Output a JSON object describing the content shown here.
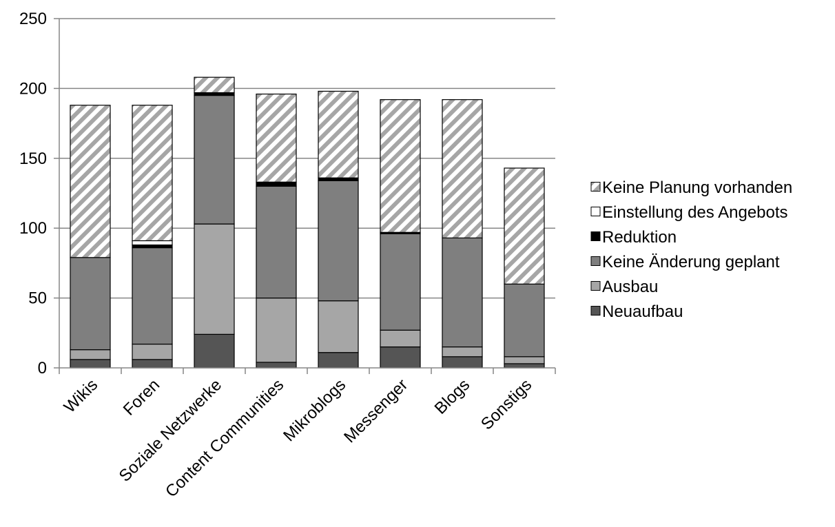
{
  "chart_data": {
    "type": "bar",
    "stacked": true,
    "title": "",
    "xlabel": "",
    "ylabel": "",
    "ylim": [
      0,
      250
    ],
    "yticks": [
      0,
      50,
      100,
      150,
      200,
      250
    ],
    "grid": true,
    "legend_position": "right",
    "categories": [
      "Wikis",
      "Foren",
      "Soziale Netzwerke",
      "Content Communities",
      "Mikroblogs",
      "Messenger",
      "Blogs",
      "Sonstigs"
    ],
    "series": [
      {
        "name": "Neuaufbau",
        "color": "#555555",
        "pattern": "solid",
        "values": [
          6,
          6,
          24,
          4,
          11,
          15,
          8,
          3
        ]
      },
      {
        "name": "Ausbau",
        "color": "#a6a6a6",
        "pattern": "solid",
        "values": [
          7,
          11,
          79,
          46,
          37,
          12,
          7,
          5
        ]
      },
      {
        "name": "Keine Änderung geplant",
        "color": "#7f7f7f",
        "pattern": "solid",
        "values": [
          66,
          69,
          92,
          80,
          86,
          69,
          78,
          52
        ]
      },
      {
        "name": "Reduktion",
        "color": "#000000",
        "pattern": "solid",
        "values": [
          0,
          2,
          2,
          3,
          2,
          1,
          0,
          0
        ]
      },
      {
        "name": "Einstellung des Angebots",
        "color": "#ffffff",
        "pattern": "solid",
        "values": [
          0,
          3,
          0,
          0,
          0,
          0,
          0,
          0
        ]
      },
      {
        "name": "Keine Planung vorhanden",
        "color": "#a6a6a6",
        "pattern": "diagonal-stripes",
        "values": [
          109,
          97,
          11,
          63,
          62,
          95,
          99,
          83
        ]
      }
    ]
  }
}
